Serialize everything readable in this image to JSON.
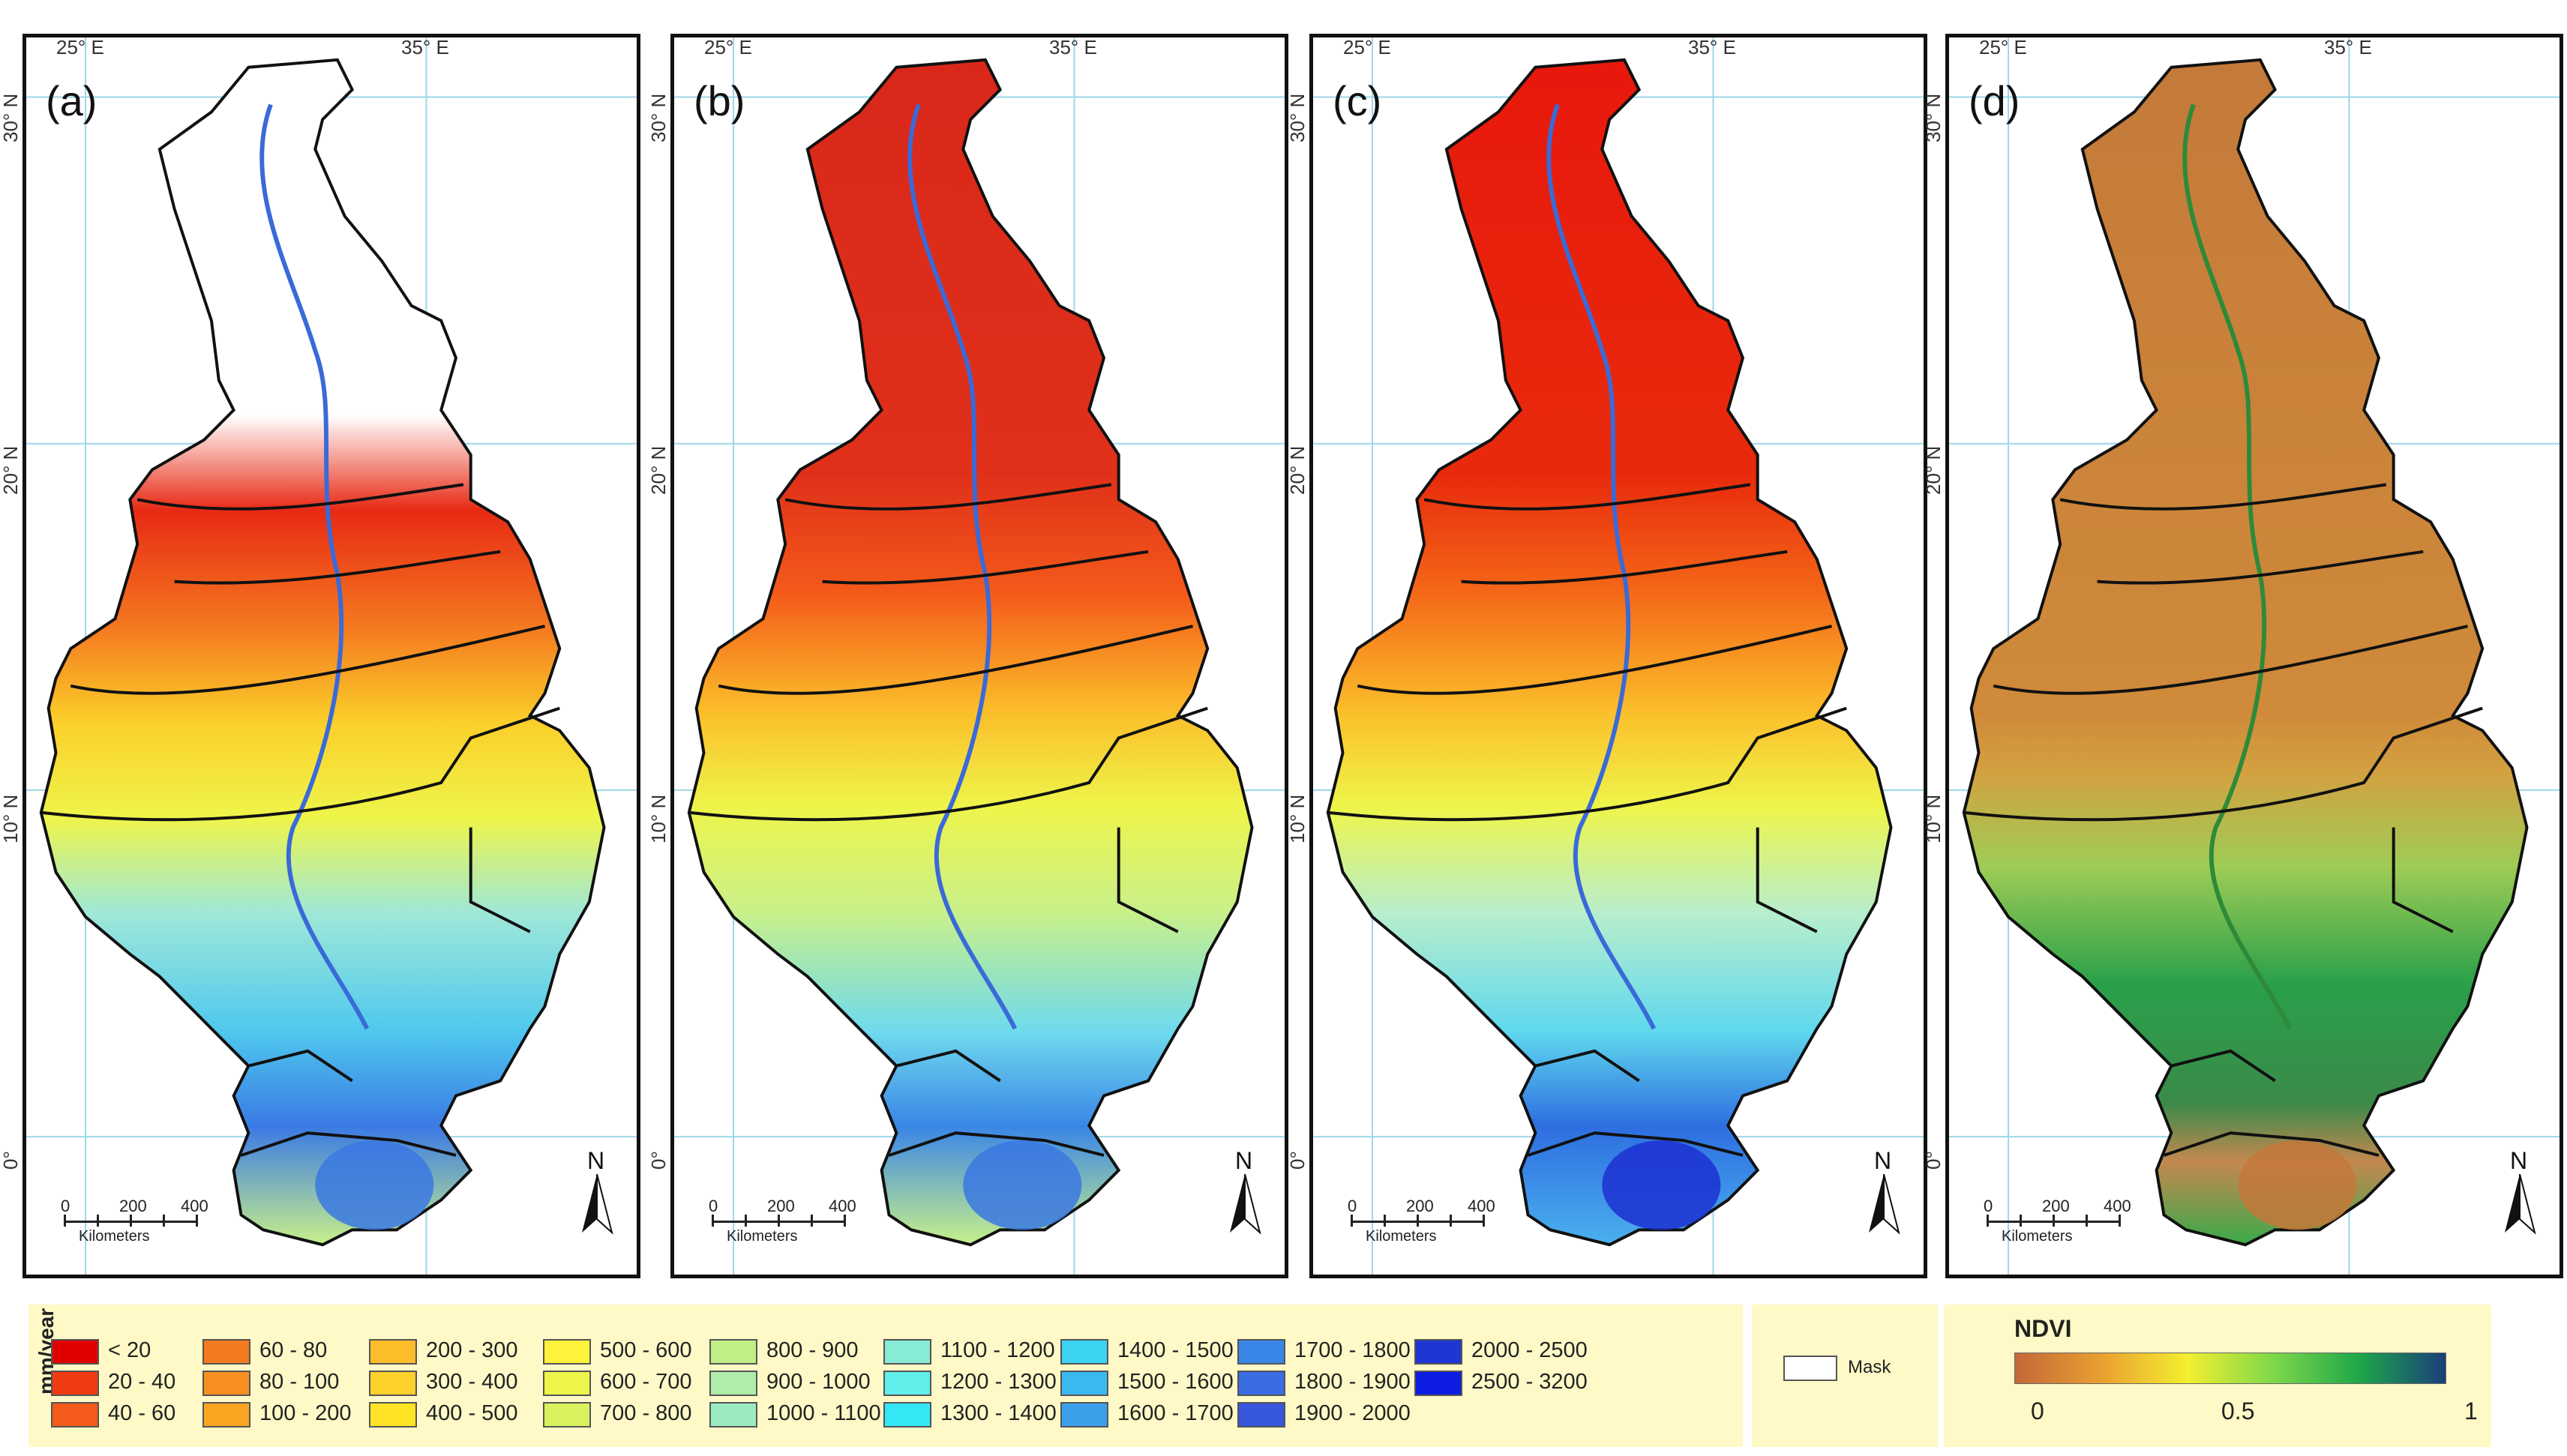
{
  "panels": [
    {
      "label": "(a)",
      "lon_labels": [
        "25° E",
        "35° E"
      ],
      "lat_labels": [
        "30° N",
        "20° N",
        "10° N",
        "0°"
      ]
    },
    {
      "label": "(b)",
      "lon_labels": [
        "25° E",
        "35° E"
      ],
      "lat_labels": [
        "30° N",
        "20° N",
        "10° N",
        "0°"
      ]
    },
    {
      "label": "(c)",
      "lon_labels": [
        "25° E",
        "35° E"
      ],
      "lat_labels": [
        "30° N",
        "20° N",
        "10° N",
        "0°"
      ]
    },
    {
      "label": "(d)",
      "lon_labels": [
        "25° E",
        "35° E"
      ],
      "lat_labels": [
        "30° N",
        "20° N",
        "10° N",
        "0°"
      ]
    }
  ],
  "scale_bar": {
    "ticks": [
      "0",
      "200",
      "400"
    ],
    "unit": "Kilometers"
  },
  "north_arrow": {
    "label": "N"
  },
  "legend": {
    "unit": "mm/year",
    "classes": [
      {
        "label": "< 20",
        "color": "#e00000"
      },
      {
        "label": "20 - 40",
        "color": "#f03a12"
      },
      {
        "label": "40 - 60",
        "color": "#f45a1a"
      },
      {
        "label": "60 - 80",
        "color": "#f47a20"
      },
      {
        "label": "80 - 100",
        "color": "#f79020"
      },
      {
        "label": "100 - 200",
        "color": "#f9a522"
      },
      {
        "label": "200 - 300",
        "color": "#fbbe2a"
      },
      {
        "label": "300 - 400",
        "color": "#fdd02a"
      },
      {
        "label": "400 -  500",
        "color": "#fee425"
      },
      {
        "label": "500 -  600",
        "color": "#fff23c"
      },
      {
        "label": "600 - 700",
        "color": "#eef54a"
      },
      {
        "label": "700 - 800",
        "color": "#d8f25e"
      },
      {
        "label": "800 - 900",
        "color": "#c2ee86"
      },
      {
        "label": "900 - 1000",
        "color": "#b0ecaa"
      },
      {
        "label": "1000 - 1100",
        "color": "#9ceac0"
      },
      {
        "label": "1100 - 1200",
        "color": "#86ecd6"
      },
      {
        "label": "1200 - 1300",
        "color": "#60eeea"
      },
      {
        "label": "1300 - 1400",
        "color": "#33e8f4"
      },
      {
        "label": "1400 - 1500",
        "color": "#3cd2f2"
      },
      {
        "label": "1500 - 1600",
        "color": "#3ab8f0"
      },
      {
        "label": "1600 - 1700",
        "color": "#3aa0ea"
      },
      {
        "label": "1700 - 1800",
        "color": "#3a86e6"
      },
      {
        "label": "1800 - 1900",
        "color": "#3a6ce2"
      },
      {
        "label": "1900 - 2000",
        "color": "#3656dc"
      },
      {
        "label": "2000 - 2500",
        "color": "#1e36d4"
      },
      {
        "label": "2500 - 3200",
        "color": "#0c1ce0"
      }
    ]
  },
  "mask_legend": {
    "label": "Mask",
    "color": "#ffffff"
  },
  "ndvi_legend": {
    "title": "NDVI",
    "ticks": [
      "0",
      "0.5",
      "1"
    ],
    "colors": [
      "#c4683a",
      "#e8a030",
      "#f4ee30",
      "#7ed84a",
      "#1fa64a",
      "#1a3f7a"
    ]
  }
}
